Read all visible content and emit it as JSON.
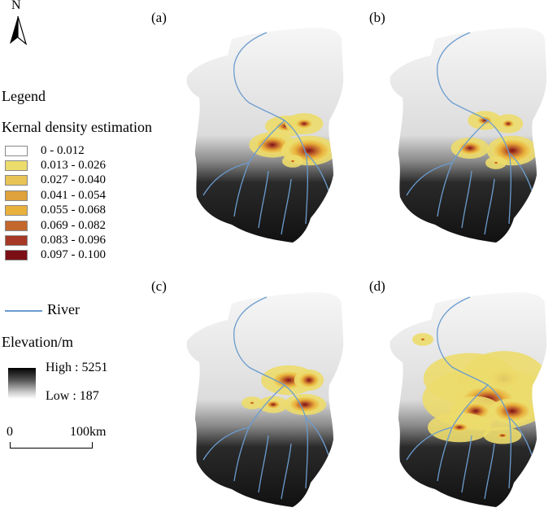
{
  "north_arrow": {
    "letter": "N",
    "icon": "north-arrow-icon"
  },
  "legend": {
    "title": "Legend",
    "kde_title": "Kernal density estimation",
    "classes": [
      {
        "range": "0 - 0.012",
        "color": "#ffffff"
      },
      {
        "range": "0.013 - 0.026",
        "color": "#ecdc6c"
      },
      {
        "range": "0.027 - 0.040",
        "color": "#e8c456"
      },
      {
        "range": "0.041 - 0.054",
        "color": "#dfa13a"
      },
      {
        "range": "0.055 - 0.068",
        "color": "#e9b13c"
      },
      {
        "range": "0.069 - 0.082",
        "color": "#c3672c"
      },
      {
        "range": "0.083 - 0.096",
        "color": "#a63825"
      },
      {
        "range": "0.097 - 0.100",
        "color": "#7c0e16"
      }
    ],
    "river_label": "River",
    "river_color": "#6b9ccf",
    "elevation_title": "Elevation/m",
    "elevation_high": "High : 5251",
    "elevation_low": "Low : 187",
    "scale_zero": "0",
    "scale_end": "100km"
  },
  "panels": [
    {
      "label": "(a)"
    },
    {
      "label": "(b)"
    },
    {
      "label": "(c)"
    },
    {
      "label": "(d)"
    }
  ]
}
